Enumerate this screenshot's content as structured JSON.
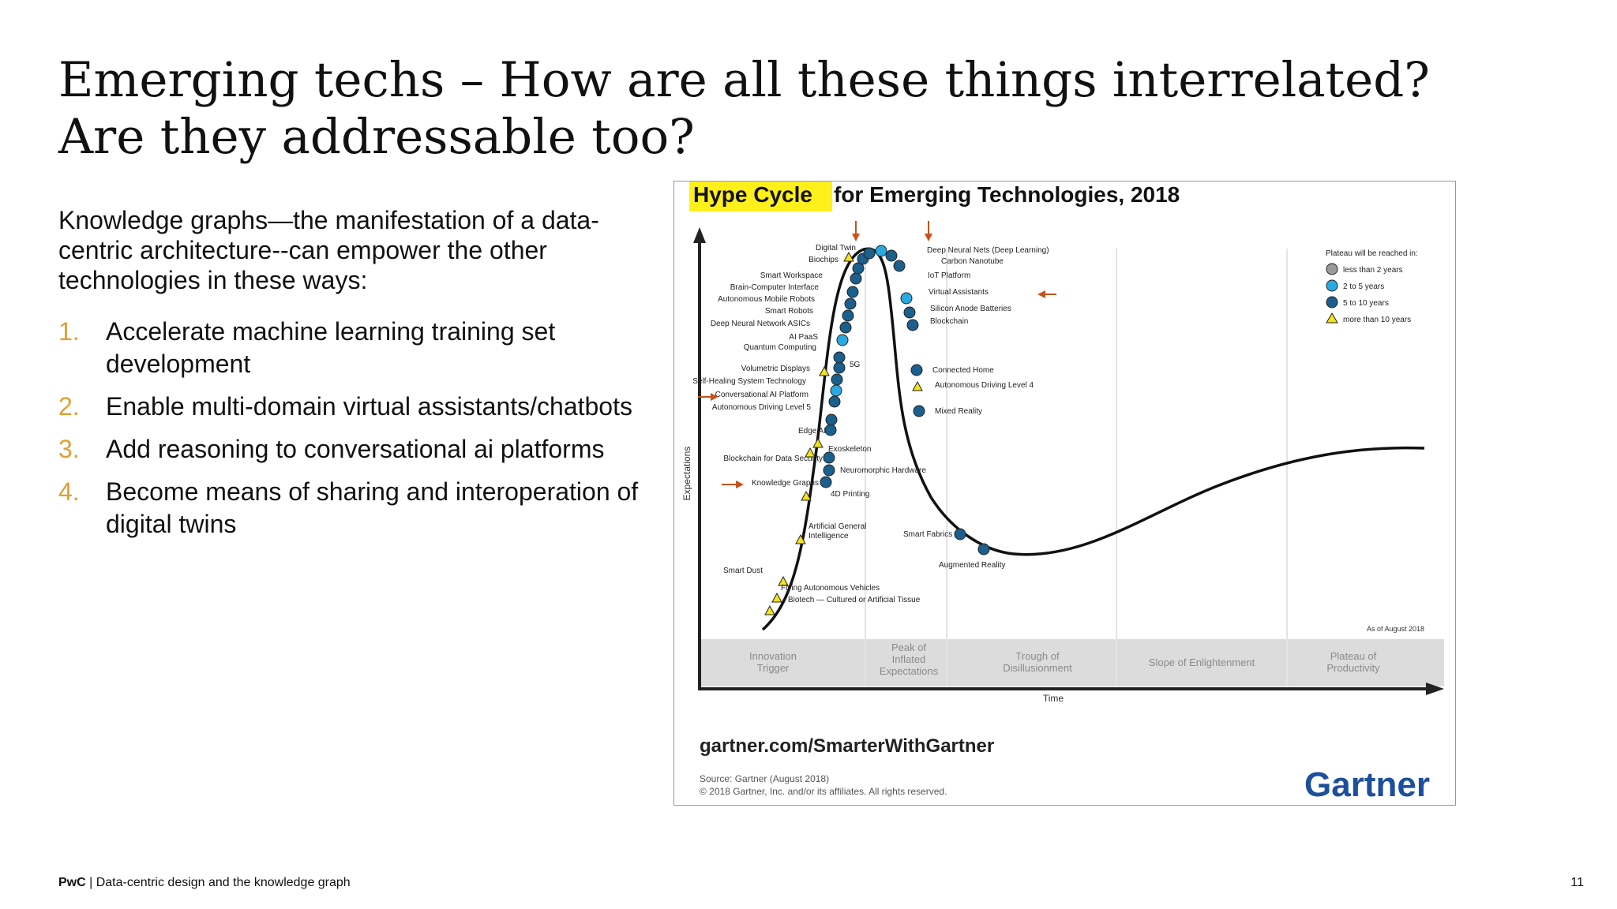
{
  "slide": {
    "title_line1": "Emerging techs – How are all these things interrelated?",
    "title_line2": "Are they addressable too?",
    "intro": "Knowledge graphs—the manifestation of a data-centric architecture--can empower the other technologies in these ways:",
    "points": [
      {
        "num": "1.",
        "text": "Accelerate machine learning training set development"
      },
      {
        "num": "2.",
        "text": "Enable multi-domain virtual assistants/chatbots"
      },
      {
        "num": "3.",
        "text": "Add reasoning to conversational ai platforms"
      },
      {
        "num": "4.",
        "text": "Become means of sharing and interoperation of digital twins"
      }
    ],
    "footer_brand": "PwC",
    "footer_text": " | Data-centric design and the knowledge graph",
    "page_number": "11"
  },
  "colors": {
    "accent_orange": "#e0a030",
    "highlight_yellow": "#ffef1a",
    "marker_gray": "#9a9a9a",
    "marker_light_blue": "#2aa9e0",
    "marker_dark_blue": "#1b5f8c",
    "marker_yellow": "#f4e21c",
    "arrow_red": "#c8501a",
    "gartner_blue": "#1c4f9c"
  },
  "diagram": {
    "title_highlight": "Hype Cycle",
    "title_rest": " for Emerging Technologies, 2018",
    "y_axis_label": "Expectations",
    "x_axis_label": "Time",
    "as_of": "As of August 2018",
    "phases": [
      {
        "line1": "Innovation",
        "line2": "Trigger",
        "line3": ""
      },
      {
        "line1": "Peak of",
        "line2": "Inflated",
        "line3": "Expectations"
      },
      {
        "line1": "Trough of",
        "line2": "Disillusionment",
        "line3": ""
      },
      {
        "line1": "Slope of Enlightenment",
        "line2": "",
        "line3": ""
      },
      {
        "line1": "Plateau of",
        "line2": "Productivity",
        "line3": ""
      }
    ],
    "legend": {
      "title": "Plateau will be reached in:",
      "items": [
        {
          "label": "less than 2 years",
          "marker": "gray-circle"
        },
        {
          "label": "2 to 5 years",
          "marker": "light-blue-circle"
        },
        {
          "label": "5 to 10 years",
          "marker": "dark-blue-circle"
        },
        {
          "label": "more than 10 years",
          "marker": "yellow-triangle"
        }
      ]
    },
    "technologies_left": [
      "Digital Twin",
      "Biochips",
      "Smart Workspace",
      "Brain-Computer Interface",
      "Autonomous Mobile Robots",
      "Smart Robots",
      "Deep Neural Network ASICs",
      "AI PaaS",
      "Quantum Computing",
      "Volumetric Displays",
      "Self-Healing System Technology",
      "Conversational AI Platform",
      "Autonomous Driving Level 5",
      "Edge AI",
      "Blockchain for Data Security",
      "Knowledge Graphs",
      "Smart Dust"
    ],
    "technologies_right": [
      "Deep Neural Nets (Deep Learning)",
      "Carbon Nanotube",
      "IoT Platform",
      "Virtual Assistants",
      "Silicon Anode Batteries",
      "Blockchain",
      "Connected Home",
      "Autonomous Driving Level 4",
      "Mixed Reality",
      "5G",
      "Exoskeleton",
      "Neuromorphic Hardware",
      "4D Printing",
      "Smart Fabrics",
      "Augmented Reality",
      "Flying Autonomous Vehicles",
      "Biotech — Cultured or Artificial Tissue"
    ],
    "agi_line1": "Artificial General",
    "agi_line2": "Intelligence",
    "site": "gartner.com/SmarterWithGartner",
    "source": "Source: Gartner (August 2018)",
    "copyright": "© 2018 Gartner, Inc. and/or its affiliates. All rights reserved.",
    "logo": "Gartner"
  }
}
